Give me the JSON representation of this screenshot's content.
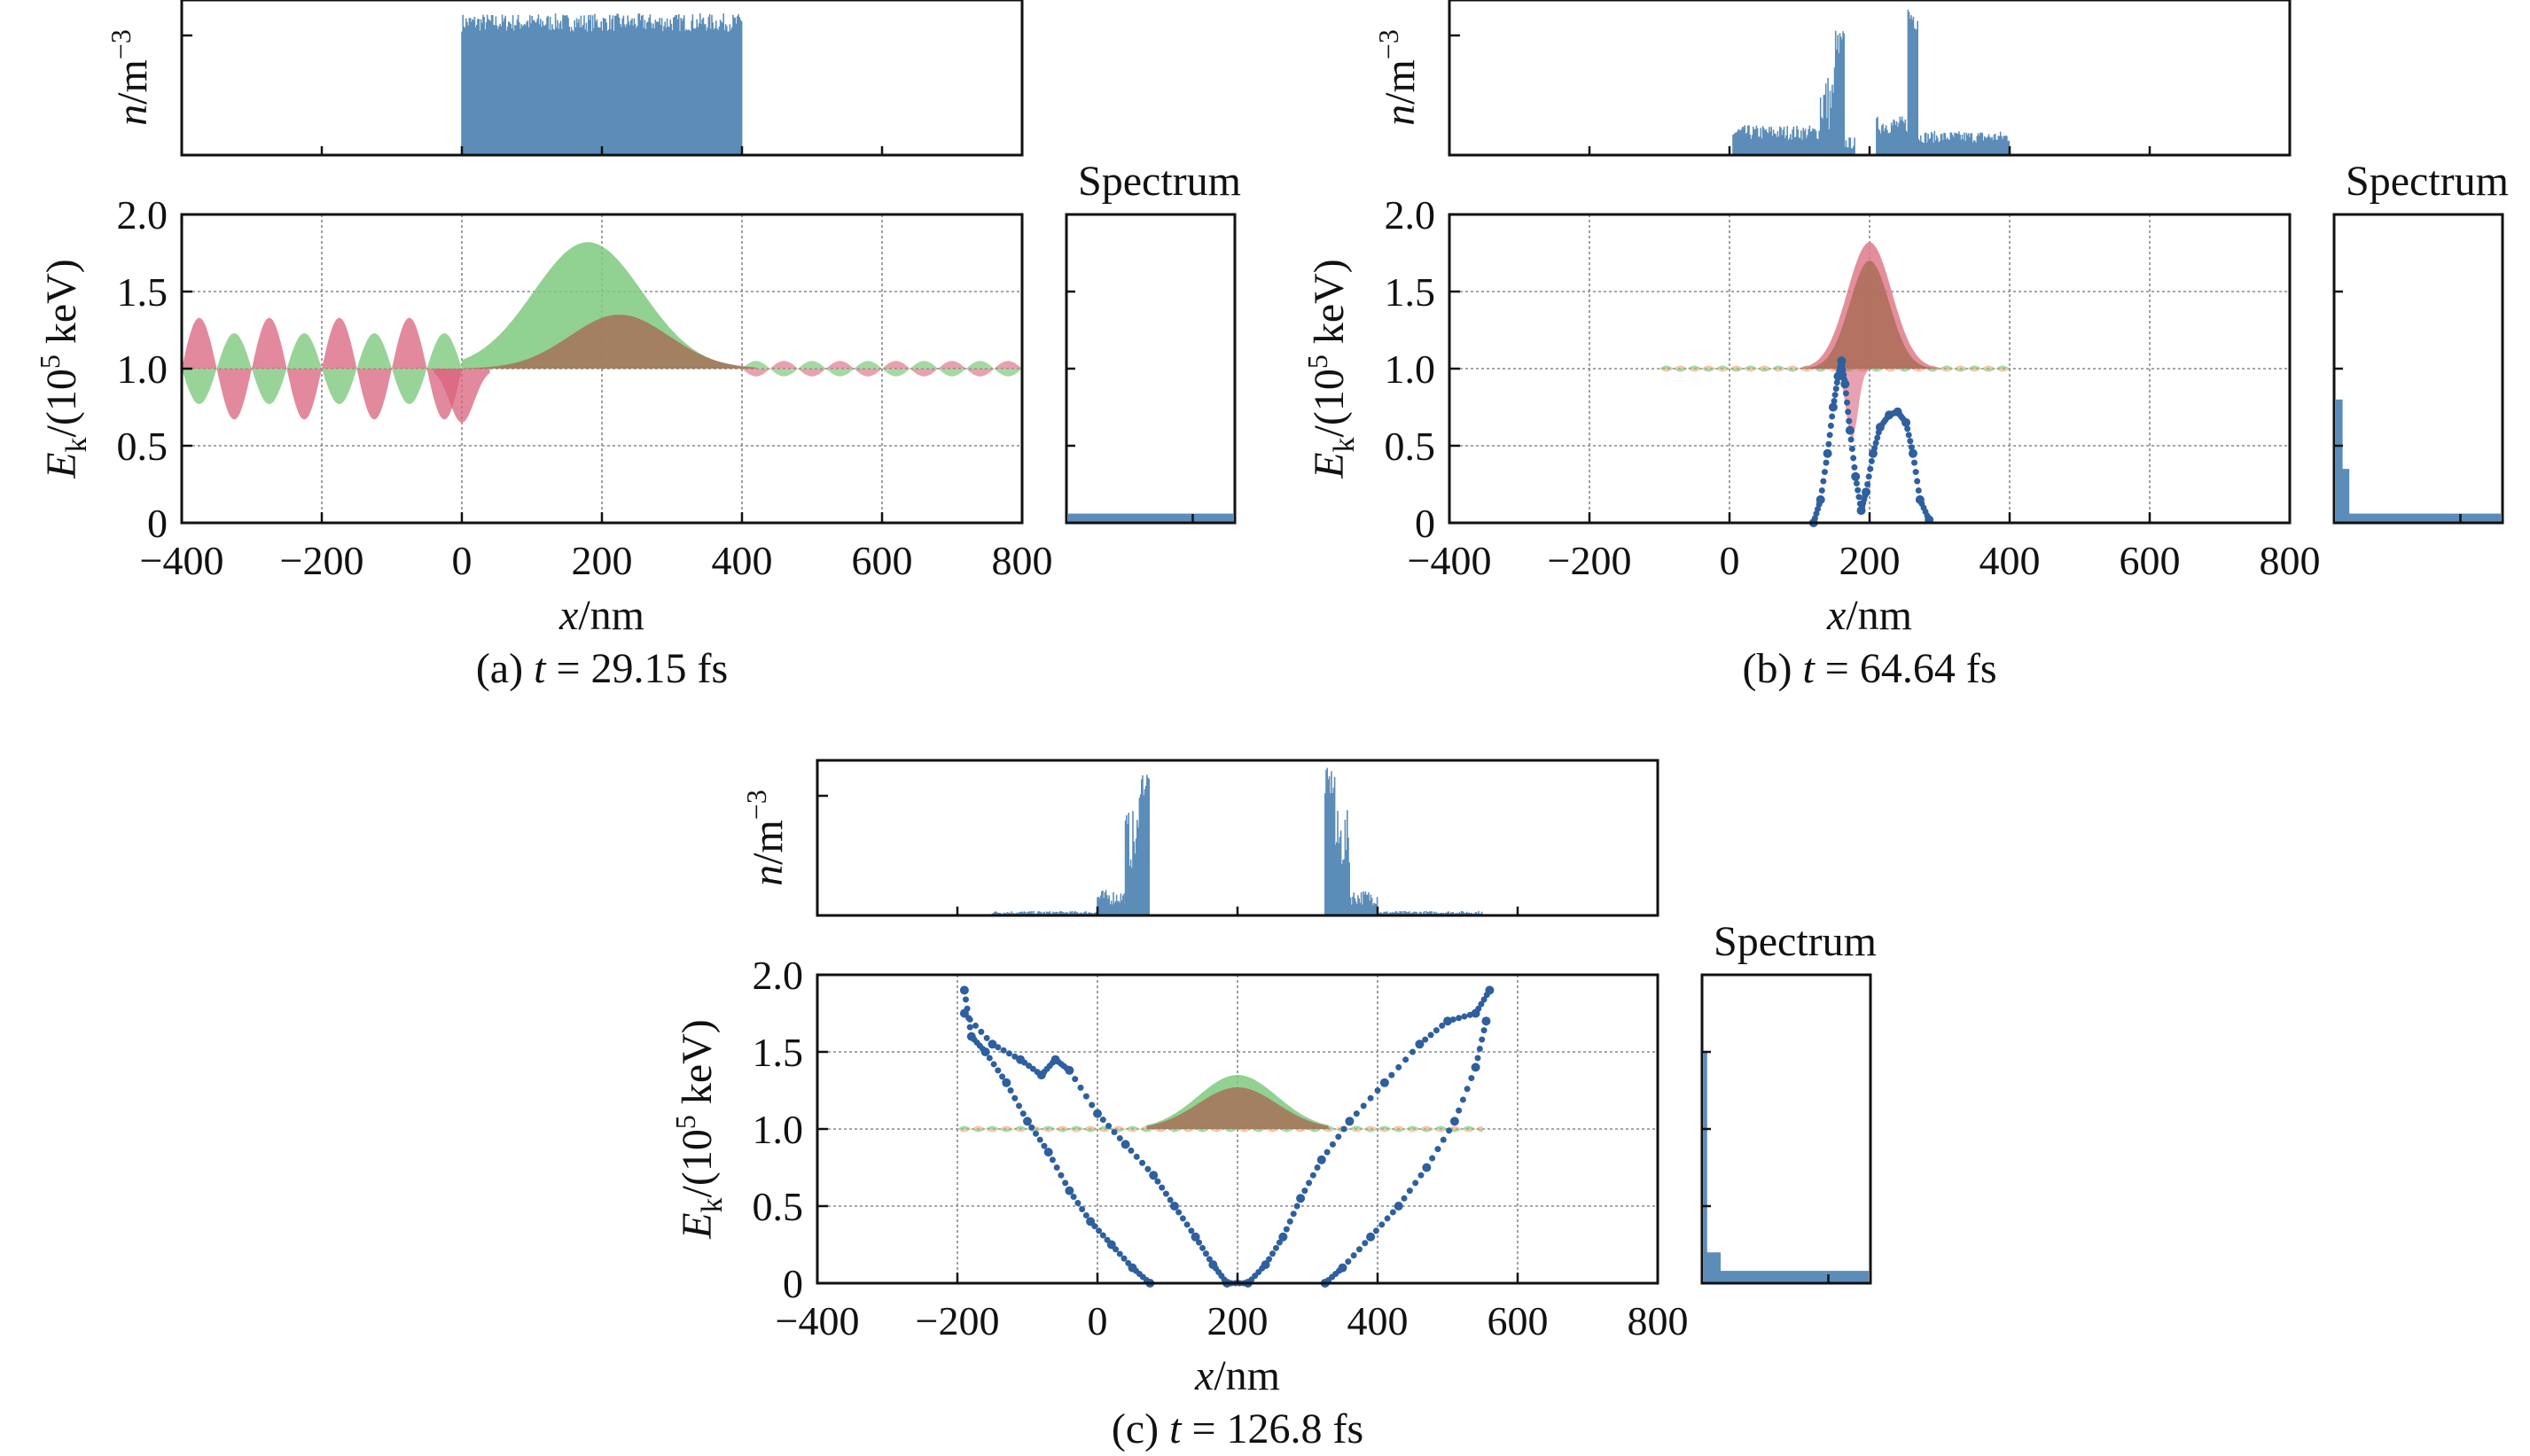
{
  "chart_data": [
    {
      "id": "a",
      "type": "area",
      "caption_prefix": "(a) ",
      "caption_var": "t",
      "caption_value": " = 29.15 fs",
      "density_ylabel": "n/m⁻³",
      "density_ylabel_var": "n",
      "density_ylabel_unit": "/m",
      "density_ylabel_exp": "−3",
      "ylabel_main": "E",
      "ylabel_sub": "k",
      "ylabel_rest": "/(10",
      "ylabel_exp": "5",
      "ylabel_end": " keV)",
      "xlabel_var": "x",
      "xlabel_unit": "/nm",
      "spectrum_title": "Spectrum",
      "xlim": [
        -400,
        800
      ],
      "ylim": [
        0,
        2.0
      ],
      "xticks": [
        "−400",
        "−200",
        "0",
        "200",
        "400",
        "600",
        "800"
      ],
      "xtick_values": [
        -400,
        -200,
        0,
        200,
        400,
        600,
        800
      ],
      "yticks": [
        "0",
        "0.5",
        "1.0",
        "1.5",
        "2.0"
      ],
      "ytick_values": [
        0,
        0.5,
        1.0,
        1.5,
        2.0
      ],
      "density": {
        "segments": [
          {
            "x0": 0,
            "x1": 400,
            "level": 0.88,
            "noise": 0.06
          }
        ]
      },
      "green_pulse": {
        "center": 180,
        "width": 110,
        "amp": 0.82,
        "x0": 0,
        "x1": 410
      },
      "brown_pulse": {
        "center": 225,
        "width": 100,
        "amp": 0.35,
        "x0": 0,
        "x1": 420
      },
      "red_wave": {
        "x0": -400,
        "x1": 0,
        "amp": 0.33,
        "wavelength": 100
      },
      "green_wave": {
        "x0": -400,
        "x1": 0,
        "amp": 0.23,
        "wavelength": 100
      },
      "trail_wave": {
        "x0": 400,
        "x1": 800,
        "amp": 0.05,
        "wavelength": 80
      },
      "scatter": [],
      "spectrum": [
        {
          "y0": 0,
          "y1": 0.06,
          "w": 1.0
        }
      ]
    },
    {
      "id": "b",
      "type": "area",
      "caption_prefix": "(b) ",
      "caption_var": "t",
      "caption_value": " = 64.64 fs",
      "density_ylabel_var": "n",
      "density_ylabel_unit": "/m",
      "density_ylabel_exp": "−3",
      "ylabel_main": "E",
      "ylabel_sub": "k",
      "ylabel_rest": "/(10",
      "ylabel_exp": "5",
      "ylabel_end": " keV)",
      "xlabel_var": "x",
      "xlabel_unit": "/nm",
      "spectrum_title": "Spectrum",
      "xlim": [
        -400,
        800
      ],
      "ylim": [
        0,
        2.0
      ],
      "xticks": [
        "−400",
        "−200",
        "0",
        "200",
        "400",
        "600",
        "800"
      ],
      "xtick_values": [
        -400,
        -200,
        0,
        200,
        400,
        600,
        800
      ],
      "yticks": [
        "0",
        "0.5",
        "1.0",
        "1.5",
        "2.0"
      ],
      "ytick_values": [
        0,
        0.5,
        1.0,
        1.5,
        2.0
      ],
      "density": {
        "segments": [
          {
            "x0": 5,
            "x1": 130,
            "level": 0.15,
            "noise": 0.05
          },
          {
            "x0": 130,
            "x1": 150,
            "level": 0.35,
            "noise": 0.2
          },
          {
            "x0": 150,
            "x1": 165,
            "level": 0.7,
            "noise": 0.15
          },
          {
            "x0": 165,
            "x1": 180,
            "level": 0.08,
            "noise": 0.04
          },
          {
            "x0": 210,
            "x1": 255,
            "level": 0.2,
            "noise": 0.06
          },
          {
            "x0": 255,
            "x1": 270,
            "level": 0.92,
            "noise": 0.1
          },
          {
            "x0": 270,
            "x1": 400,
            "level": 0.12,
            "noise": 0.04
          }
        ]
      },
      "green_pulse": {
        "center": 200,
        "width": 45,
        "amp": 0.82,
        "x0": 100,
        "x1": 300
      },
      "brown_pulse": {
        "center": 200,
        "width": 40,
        "amp": 0.7,
        "x0": 100,
        "x1": 300
      },
      "red_wave": {
        "x0": 0,
        "x1": 0,
        "amp": 0,
        "wavelength": 100
      },
      "green_wave": {
        "x0": 0,
        "x1": 0,
        "amp": 0,
        "wavelength": 100
      },
      "trail_wave": {
        "x0": -100,
        "x1": 400,
        "amp": 0.02,
        "wavelength": 40
      },
      "scatter": [
        {
          "x": 120,
          "y": 0.0
        },
        {
          "x": 130,
          "y": 0.15
        },
        {
          "x": 140,
          "y": 0.45
        },
        {
          "x": 148,
          "y": 0.75
        },
        {
          "x": 155,
          "y": 0.95
        },
        {
          "x": 160,
          "y": 1.05
        },
        {
          "x": 165,
          "y": 0.9
        },
        {
          "x": 172,
          "y": 0.6
        },
        {
          "x": 180,
          "y": 0.3
        },
        {
          "x": 188,
          "y": 0.08
        },
        {
          "x": 195,
          "y": 0.2
        },
        {
          "x": 205,
          "y": 0.45
        },
        {
          "x": 215,
          "y": 0.62
        },
        {
          "x": 228,
          "y": 0.7
        },
        {
          "x": 240,
          "y": 0.72
        },
        {
          "x": 252,
          "y": 0.65
        },
        {
          "x": 262,
          "y": 0.45
        },
        {
          "x": 272,
          "y": 0.15
        },
        {
          "x": 285,
          "y": 0.02
        }
      ],
      "spectrum": [
        {
          "y0": 0,
          "y1": 0.8,
          "w": 0.04
        },
        {
          "y0": 0,
          "y1": 0.35,
          "w": 0.08
        },
        {
          "y0": 0,
          "y1": 0.06,
          "w": 1.0
        }
      ]
    },
    {
      "id": "c",
      "type": "area",
      "caption_prefix": "(c) ",
      "caption_var": "t",
      "caption_value": " = 126.8 fs",
      "density_ylabel_var": "n",
      "density_ylabel_unit": "/m",
      "density_ylabel_exp": "−3",
      "ylabel_main": "E",
      "ylabel_sub": "k",
      "ylabel_rest": "/(10",
      "ylabel_exp": "5",
      "ylabel_end": " keV)",
      "xlabel_var": "x",
      "xlabel_unit": "/nm",
      "spectrum_title": "Spectrum",
      "xlim": [
        -400,
        800
      ],
      "ylim": [
        0,
        2.0
      ],
      "xticks": [
        "−400",
        "−200",
        "0",
        "200",
        "400",
        "600",
        "800"
      ],
      "xtick_values": [
        -400,
        -200,
        0,
        200,
        400,
        600,
        800
      ],
      "yticks": [
        "0",
        "0.5",
        "1.0",
        "1.5",
        "2.0"
      ],
      "ytick_values": [
        0,
        0.5,
        1.0,
        1.5,
        2.0
      ],
      "density": {
        "segments": [
          {
            "x0": -150,
            "x1": 0,
            "level": 0.02,
            "noise": 0.01
          },
          {
            "x0": 0,
            "x1": 40,
            "level": 0.12,
            "noise": 0.05
          },
          {
            "x0": 40,
            "x1": 60,
            "level": 0.5,
            "noise": 0.2
          },
          {
            "x0": 60,
            "x1": 75,
            "level": 0.88,
            "noise": 0.1
          },
          {
            "x0": 325,
            "x1": 340,
            "level": 0.88,
            "noise": 0.1
          },
          {
            "x0": 340,
            "x1": 360,
            "level": 0.5,
            "noise": 0.2
          },
          {
            "x0": 360,
            "x1": 400,
            "level": 0.12,
            "noise": 0.05
          },
          {
            "x0": 400,
            "x1": 550,
            "level": 0.02,
            "noise": 0.01
          }
        ]
      },
      "green_pulse": {
        "center": 200,
        "width": 80,
        "amp": 0.35,
        "x0": 70,
        "x1": 330
      },
      "brown_pulse": {
        "center": 200,
        "width": 80,
        "amp": 0.27,
        "x0": 70,
        "x1": 330
      },
      "red_wave": {
        "x0": 0,
        "x1": 0,
        "amp": 0,
        "wavelength": 100
      },
      "green_wave": {
        "x0": 0,
        "x1": 0,
        "amp": 0,
        "wavelength": 100
      },
      "trail_wave": {
        "x0": -200,
        "x1": 550,
        "amp": 0.02,
        "wavelength": 40
      },
      "scatter": [
        {
          "x": -190,
          "y": 1.9
        },
        {
          "x": -180,
          "y": 1.6
        },
        {
          "x": -160,
          "y": 1.5
        },
        {
          "x": -130,
          "y": 1.3
        },
        {
          "x": -100,
          "y": 1.05
        },
        {
          "x": -70,
          "y": 0.85
        },
        {
          "x": -40,
          "y": 0.6
        },
        {
          "x": -10,
          "y": 0.4
        },
        {
          "x": 20,
          "y": 0.25
        },
        {
          "x": 50,
          "y": 0.1
        },
        {
          "x": 75,
          "y": 0.0
        },
        {
          "x": -190,
          "y": 1.75
        },
        {
          "x": -150,
          "y": 1.55
        },
        {
          "x": -110,
          "y": 1.45
        },
        {
          "x": -80,
          "y": 1.35
        },
        {
          "x": -60,
          "y": 1.45
        },
        {
          "x": -40,
          "y": 1.38
        },
        {
          "x": 0,
          "y": 1.1
        },
        {
          "x": 40,
          "y": 0.9
        },
        {
          "x": 80,
          "y": 0.7
        },
        {
          "x": 110,
          "y": 0.5
        },
        {
          "x": 140,
          "y": 0.3
        },
        {
          "x": 165,
          "y": 0.12
        },
        {
          "x": 185,
          "y": 0.0
        },
        {
          "x": 215,
          "y": 0.0
        },
        {
          "x": 240,
          "y": 0.12
        },
        {
          "x": 265,
          "y": 0.3
        },
        {
          "x": 290,
          "y": 0.55
        },
        {
          "x": 320,
          "y": 0.8
        },
        {
          "x": 360,
          "y": 1.05
        },
        {
          "x": 410,
          "y": 1.3
        },
        {
          "x": 460,
          "y": 1.55
        },
        {
          "x": 500,
          "y": 1.7
        },
        {
          "x": 540,
          "y": 1.75
        },
        {
          "x": 560,
          "y": 1.9
        },
        {
          "x": 325,
          "y": 0.0
        },
        {
          "x": 350,
          "y": 0.1
        },
        {
          "x": 390,
          "y": 0.3
        },
        {
          "x": 430,
          "y": 0.5
        },
        {
          "x": 470,
          "y": 0.75
        },
        {
          "x": 510,
          "y": 1.05
        },
        {
          "x": 540,
          "y": 1.4
        },
        {
          "x": 555,
          "y": 1.7
        }
      ],
      "spectrum": [
        {
          "y0": 0,
          "y1": 1.5,
          "w": 0.02
        },
        {
          "y0": 0,
          "y1": 0.2,
          "w": 0.1
        },
        {
          "y0": 0,
          "y1": 0.08,
          "w": 1.0
        }
      ]
    }
  ]
}
